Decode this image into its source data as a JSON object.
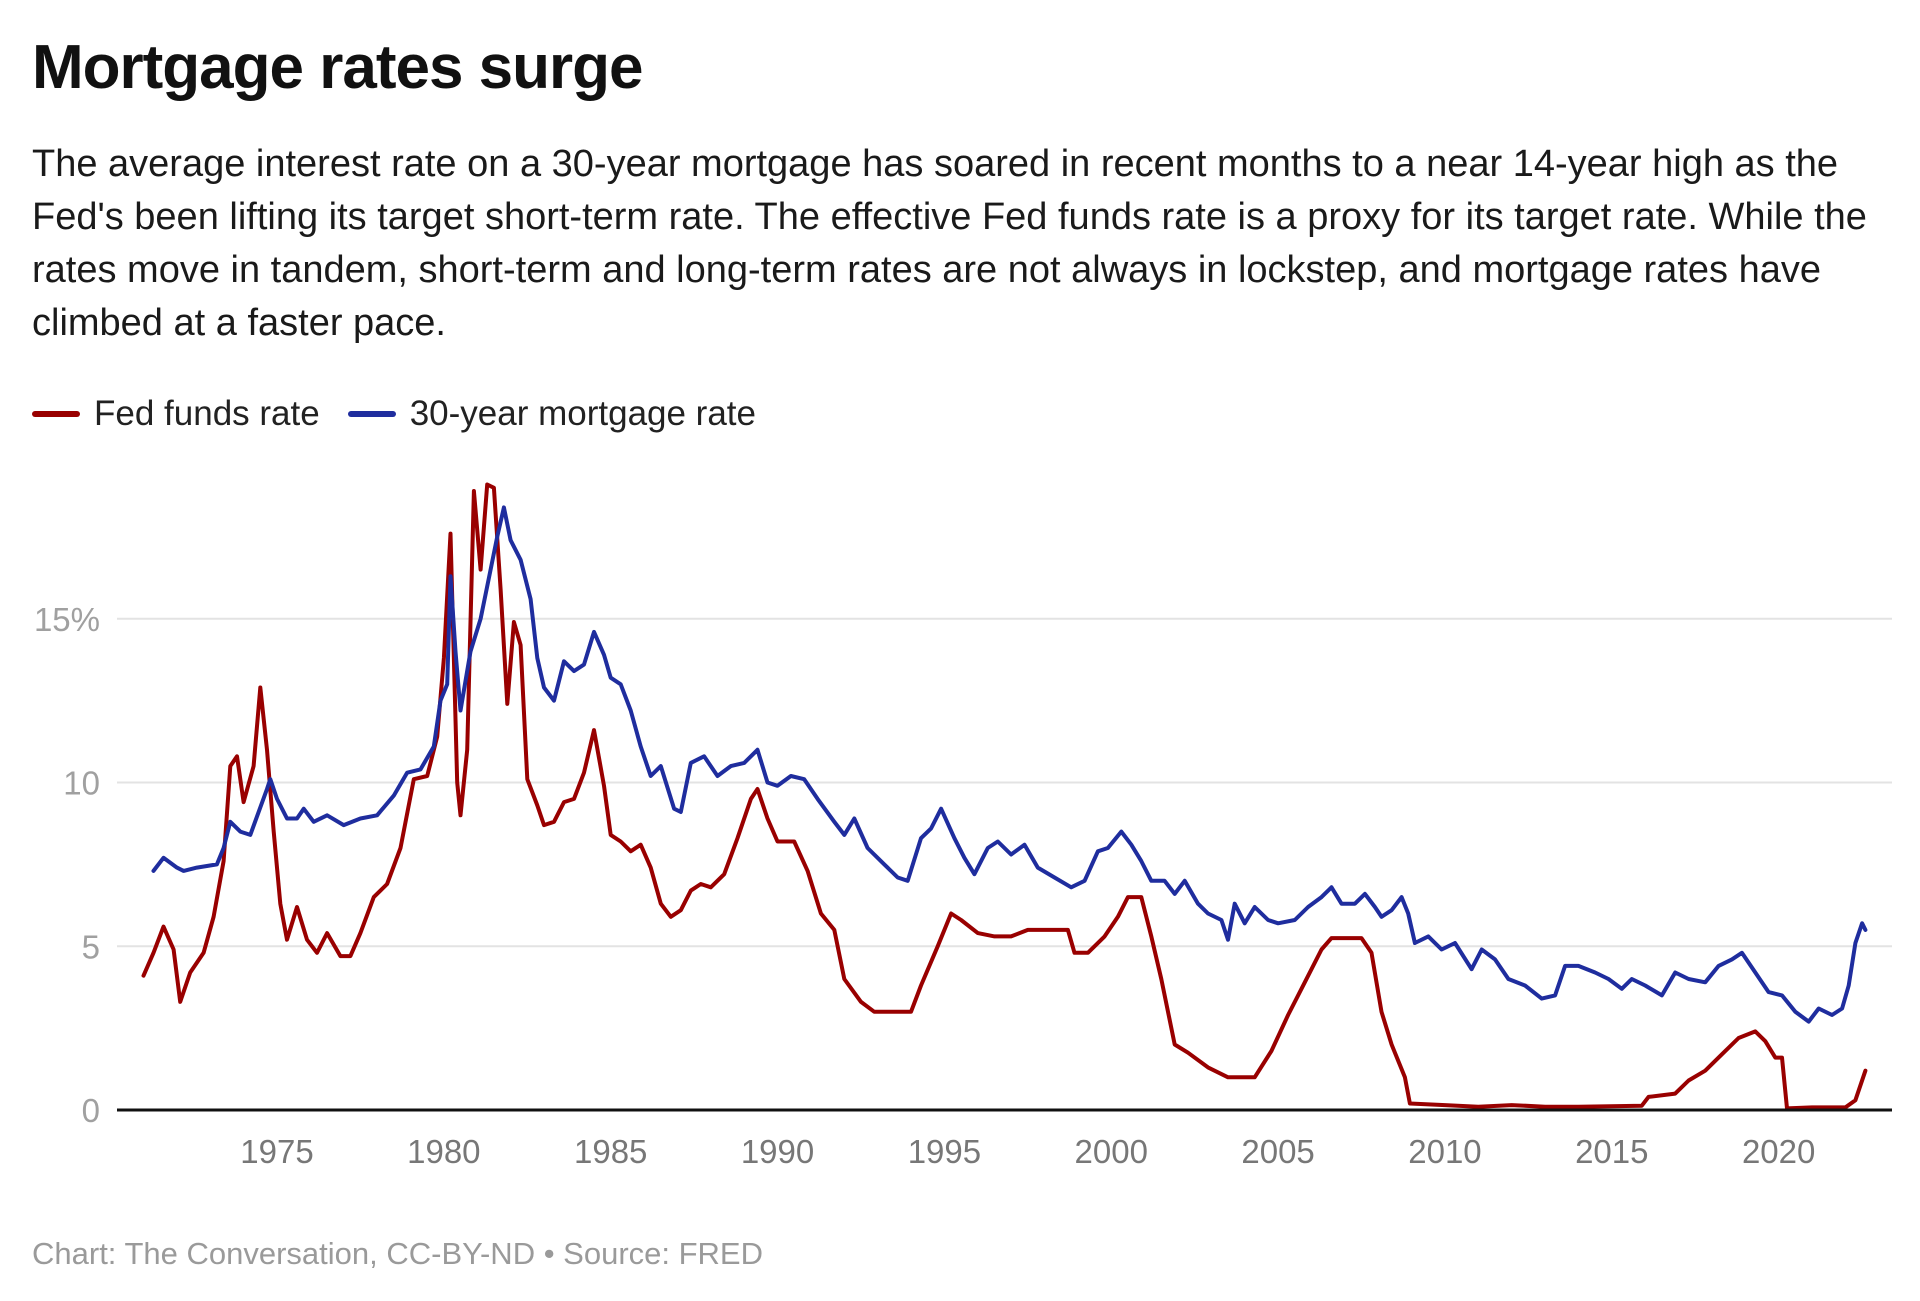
{
  "chart_data": {
    "type": "line",
    "title": "Mortgage rates surge",
    "subtitle": "The average interest rate on a 30-year mortgage has soared in recent months to a near 14-year high as the Fed's been lifting its target short-term rate. The effective Fed funds rate is a proxy for its target rate. While the rates move in tandem, short-term and long-term rates are not always in lockstep, and mortgage rates have climbed at a faster pace.",
    "xlabel": "",
    "ylabel": "",
    "xlim": [
      1971,
      2022.9
    ],
    "ylim": [
      0,
      19.2
    ],
    "grid": true,
    "legend_position": "top-left",
    "y_ticks": [
      {
        "value": 0,
        "label": "0"
      },
      {
        "value": 5,
        "label": "5"
      },
      {
        "value": 10,
        "label": "10"
      },
      {
        "value": 15,
        "label": "15%"
      }
    ],
    "x_ticks": [
      {
        "value": 1975,
        "label": "1975"
      },
      {
        "value": 1980,
        "label": "1980"
      },
      {
        "value": 1985,
        "label": "1985"
      },
      {
        "value": 1990,
        "label": "1990"
      },
      {
        "value": 1995,
        "label": "1995"
      },
      {
        "value": 2000,
        "label": "2000"
      },
      {
        "value": 2005,
        "label": "2005"
      },
      {
        "value": 2010,
        "label": "2010"
      },
      {
        "value": 2015,
        "label": "2015"
      },
      {
        "value": 2020,
        "label": "2020"
      }
    ],
    "series": [
      {
        "name": "Fed funds rate",
        "color": "#990000",
        "x": [
          1971.0,
          1971.3,
          1971.6,
          1971.9,
          1972.1,
          1972.4,
          1972.8,
          1973.1,
          1973.4,
          1973.6,
          1973.8,
          1974.0,
          1974.3,
          1974.5,
          1974.7,
          1974.9,
          1975.1,
          1975.3,
          1975.6,
          1975.9,
          1976.2,
          1976.5,
          1976.9,
          1977.2,
          1977.5,
          1977.9,
          1978.3,
          1978.7,
          1979.1,
          1979.5,
          1979.8,
          1980.0,
          1980.2,
          1980.4,
          1980.5,
          1980.7,
          1980.9,
          1981.1,
          1981.3,
          1981.5,
          1981.7,
          1981.9,
          1982.1,
          1982.3,
          1982.5,
          1982.8,
          1983.0,
          1983.3,
          1983.6,
          1983.9,
          1984.2,
          1984.5,
          1984.8,
          1985.0,
          1985.3,
          1985.6,
          1985.9,
          1986.2,
          1986.5,
          1986.8,
          1987.1,
          1987.4,
          1987.7,
          1988.0,
          1988.4,
          1988.8,
          1989.2,
          1989.4,
          1989.7,
          1990.0,
          1990.5,
          1990.9,
          1991.3,
          1991.7,
          1992.0,
          1992.5,
          1992.9,
          1993.5,
          1994.0,
          1994.3,
          1994.8,
          1995.2,
          1995.5,
          1996.0,
          1996.5,
          1997.0,
          1997.5,
          1998.0,
          1998.7,
          1998.9,
          1999.3,
          1999.8,
          2000.2,
          2000.5,
          2000.9,
          2001.2,
          2001.5,
          2001.9,
          2002.3,
          2002.9,
          2003.5,
          2004.3,
          2004.8,
          2005.3,
          2005.8,
          2006.3,
          2006.6,
          2007.5,
          2007.8,
          2008.1,
          2008.4,
          2008.8,
          2008.95,
          2010.0,
          2011.0,
          2012.0,
          2013.0,
          2014.0,
          2015.9,
          2016.1,
          2016.9,
          2017.3,
          2017.8,
          2018.3,
          2018.8,
          2019.3,
          2019.6,
          2019.9,
          2020.1,
          2020.25,
          2021.0,
          2022.0,
          2022.3,
          2022.6
        ],
        "y": [
          4.1,
          4.8,
          5.6,
          4.9,
          3.3,
          4.2,
          4.8,
          5.9,
          7.6,
          10.5,
          10.8,
          9.4,
          10.5,
          12.9,
          11.0,
          8.5,
          6.3,
          5.2,
          6.2,
          5.2,
          4.8,
          5.4,
          4.7,
          4.7,
          5.4,
          6.5,
          6.9,
          8.0,
          10.1,
          10.2,
          11.4,
          13.8,
          17.6,
          10.0,
          9.0,
          11.0,
          18.9,
          16.5,
          19.1,
          19.0,
          15.9,
          12.4,
          14.9,
          14.2,
          10.1,
          9.3,
          8.7,
          8.8,
          9.4,
          9.5,
          10.3,
          11.6,
          9.9,
          8.4,
          8.2,
          7.9,
          8.1,
          7.4,
          6.3,
          5.9,
          6.1,
          6.7,
          6.9,
          6.8,
          7.2,
          8.3,
          9.5,
          9.8,
          8.9,
          8.2,
          8.2,
          7.3,
          6.0,
          5.5,
          4.0,
          3.3,
          3.0,
          3.0,
          3.0,
          3.8,
          5.0,
          6.0,
          5.8,
          5.4,
          5.3,
          5.3,
          5.5,
          5.5,
          5.5,
          4.8,
          4.8,
          5.3,
          5.9,
          6.5,
          6.5,
          5.3,
          4.0,
          2.0,
          1.75,
          1.3,
          1.0,
          1.0,
          1.8,
          2.9,
          3.9,
          4.9,
          5.25,
          5.25,
          4.8,
          3.0,
          2.0,
          1.0,
          0.2,
          0.15,
          0.1,
          0.15,
          0.1,
          0.1,
          0.13,
          0.4,
          0.5,
          0.9,
          1.2,
          1.7,
          2.2,
          2.4,
          2.1,
          1.6,
          1.6,
          0.05,
          0.08,
          0.08,
          0.3,
          1.2
        ]
      },
      {
        "name": "30-year mortgage rate",
        "color": "#1f2d9e",
        "x": [
          1971.3,
          1971.6,
          1972.0,
          1972.2,
          1972.6,
          1973.2,
          1973.4,
          1973.6,
          1973.9,
          1974.2,
          1974.7,
          1974.8,
          1975.0,
          1975.3,
          1975.6,
          1975.8,
          1976.1,
          1976.5,
          1977.0,
          1977.5,
          1978.0,
          1978.5,
          1978.9,
          1979.3,
          1979.7,
          1979.9,
          1980.1,
          1980.2,
          1980.35,
          1980.5,
          1980.8,
          1981.1,
          1981.4,
          1981.6,
          1981.8,
          1982.0,
          1982.3,
          1982.6,
          1982.8,
          1983.0,
          1983.3,
          1983.6,
          1983.9,
          1984.2,
          1984.5,
          1984.8,
          1985.0,
          1985.3,
          1985.6,
          1985.9,
          1986.2,
          1986.5,
          1986.9,
          1987.1,
          1987.4,
          1987.8,
          1988.2,
          1988.6,
          1989.0,
          1989.4,
          1989.7,
          1990.0,
          1990.4,
          1990.8,
          1991.2,
          1991.7,
          1992.0,
          1992.3,
          1992.7,
          1993.2,
          1993.6,
          1993.9,
          1994.3,
          1994.6,
          1994.9,
          1995.3,
          1995.6,
          1995.9,
          1996.3,
          1996.6,
          1997.0,
          1997.4,
          1997.8,
          1998.3,
          1998.8,
          1999.2,
          1999.6,
          1999.9,
          2000.3,
          2000.6,
          2000.9,
          2001.2,
          2001.6,
          2001.9,
          2002.2,
          2002.6,
          2002.9,
          2003.3,
          2003.5,
          2003.7,
          2004.0,
          2004.3,
          2004.7,
          2005.0,
          2005.5,
          2005.9,
          2006.3,
          2006.6,
          2006.9,
          2007.3,
          2007.6,
          2007.9,
          2008.1,
          2008.4,
          2008.7,
          2008.9,
          2009.1,
          2009.5,
          2009.9,
          2010.3,
          2010.8,
          2011.1,
          2011.5,
          2011.9,
          2012.4,
          2012.9,
          2013.3,
          2013.6,
          2014.0,
          2014.5,
          2014.9,
          2015.3,
          2015.6,
          2016.0,
          2016.5,
          2016.9,
          2017.3,
          2017.8,
          2018.2,
          2018.6,
          2018.9,
          2019.3,
          2019.7,
          2020.1,
          2020.5,
          2020.9,
          2021.2,
          2021.6,
          2021.9,
          2022.1,
          2022.3,
          2022.5,
          2022.6
        ],
        "y": [
          7.3,
          7.7,
          7.4,
          7.3,
          7.4,
          7.5,
          8.0,
          8.8,
          8.5,
          8.4,
          9.8,
          10.1,
          9.5,
          8.9,
          8.9,
          9.2,
          8.8,
          9.0,
          8.7,
          8.9,
          9.0,
          9.6,
          10.3,
          10.4,
          11.1,
          12.5,
          13.0,
          16.3,
          14.0,
          12.2,
          14.0,
          15.0,
          16.5,
          17.5,
          18.4,
          17.4,
          16.8,
          15.6,
          13.8,
          12.9,
          12.5,
          13.7,
          13.4,
          13.6,
          14.6,
          13.9,
          13.2,
          13.0,
          12.2,
          11.1,
          10.2,
          10.5,
          9.2,
          9.1,
          10.6,
          10.8,
          10.2,
          10.5,
          10.6,
          11.0,
          10.0,
          9.9,
          10.2,
          10.1,
          9.5,
          8.8,
          8.4,
          8.9,
          8.0,
          7.5,
          7.1,
          7.0,
          8.3,
          8.6,
          9.2,
          8.3,
          7.7,
          7.2,
          8.0,
          8.2,
          7.8,
          8.1,
          7.4,
          7.1,
          6.8,
          7.0,
          7.9,
          8.0,
          8.5,
          8.1,
          7.6,
          7.0,
          7.0,
          6.6,
          7.0,
          6.3,
          6.0,
          5.8,
          5.2,
          6.3,
          5.7,
          6.2,
          5.8,
          5.7,
          5.8,
          6.2,
          6.5,
          6.8,
          6.3,
          6.3,
          6.6,
          6.2,
          5.9,
          6.1,
          6.5,
          6.0,
          5.1,
          5.3,
          4.9,
          5.1,
          4.3,
          4.9,
          4.6,
          4.0,
          3.8,
          3.4,
          3.5,
          4.4,
          4.4,
          4.2,
          4.0,
          3.7,
          4.0,
          3.8,
          3.5,
          4.2,
          4.0,
          3.9,
          4.4,
          4.6,
          4.8,
          4.2,
          3.6,
          3.5,
          3.0,
          2.7,
          3.1,
          2.9,
          3.1,
          3.8,
          5.1,
          5.7,
          5.5
        ]
      }
    ]
  },
  "footer": {
    "credit": "Chart: The Conversation, CC-BY-ND • Source: FRED"
  }
}
